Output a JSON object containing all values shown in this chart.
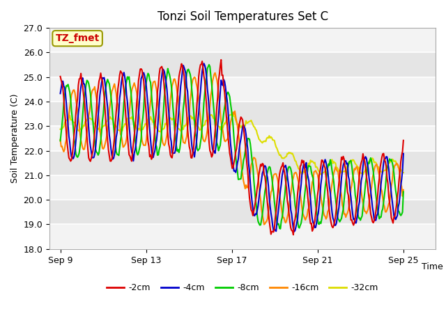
{
  "title": "Tonzi Soil Temperatures Set C",
  "xlabel": "Time",
  "ylabel": "Soil Temperature (C)",
  "ylim": [
    18.0,
    27.0
  ],
  "yticks": [
    18.0,
    19.0,
    20.0,
    21.0,
    22.0,
    23.0,
    24.0,
    25.0,
    26.0,
    27.0
  ],
  "xtick_labels": [
    "Sep 9",
    "Sep 13",
    "Sep 17",
    "Sep 21",
    "Sep 25"
  ],
  "xtick_positions": [
    0,
    4,
    8,
    12,
    16
  ],
  "legend_labels": [
    "-2cm",
    "-4cm",
    "-8cm",
    "-16cm",
    "-32cm"
  ],
  "legend_colors": [
    "#dd0000",
    "#0000cc",
    "#00cc00",
    "#ff8800",
    "#dddd00"
  ],
  "line_width": 1.5,
  "annotation_text": "TZ_fmet",
  "annotation_color": "#cc0000",
  "annotation_bg": "#ffffcc",
  "annotation_border": "#999900",
  "plot_bg_color": "#e8e8e8",
  "band_color_light": "#e0e0e0",
  "band_color_white": "#f0f0f0",
  "n_points": 400,
  "figsize": [
    6.4,
    4.8
  ],
  "dpi": 100
}
